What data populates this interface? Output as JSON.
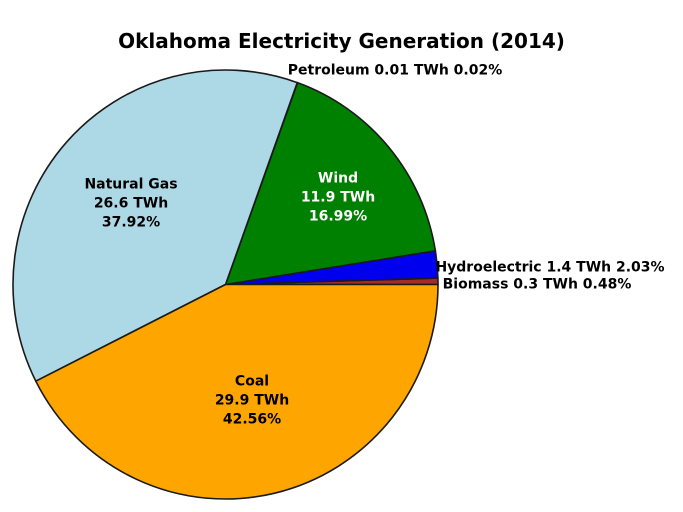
{
  "title": "Oklahoma Electricity Generation (2014)",
  "background_color": "#FFFFFF",
  "wedge_edge_color": "#1A1A1A",
  "chart_data": {
    "type": "pie",
    "title": "Oklahoma Electricity Generation (2014)",
    "unit": "TWh",
    "start_angle_deg": 0,
    "direction": "counterclockwise",
    "slices": [
      {
        "label": "Biomass",
        "value_twh": 0.3,
        "percent": 0.48,
        "color": "#A52A2A",
        "label_placement": "outside",
        "label_color": "#000000"
      },
      {
        "label": "Hydroelectric",
        "value_twh": 1.4,
        "percent": 2.03,
        "color": "#0000EE",
        "label_placement": "outside",
        "label_color": "#000000"
      },
      {
        "label": "Wind",
        "value_twh": 11.9,
        "percent": 16.99,
        "color": "#008000",
        "label_placement": "inside",
        "label_color": "#FFFFFF"
      },
      {
        "label": "Petroleum",
        "value_twh": 0.01,
        "percent": 0.02,
        "color": null,
        "label_placement": "outside",
        "label_color": "#000000"
      },
      {
        "label": "Natural Gas",
        "value_twh": 26.6,
        "percent": 37.92,
        "color": "#ADD8E6",
        "label_placement": "inside",
        "label_color": "#000000"
      },
      {
        "label": "Coal",
        "value_twh": 29.9,
        "percent": 42.56,
        "color": "#FFA500",
        "label_placement": "inside",
        "label_color": "#000000"
      }
    ]
  }
}
